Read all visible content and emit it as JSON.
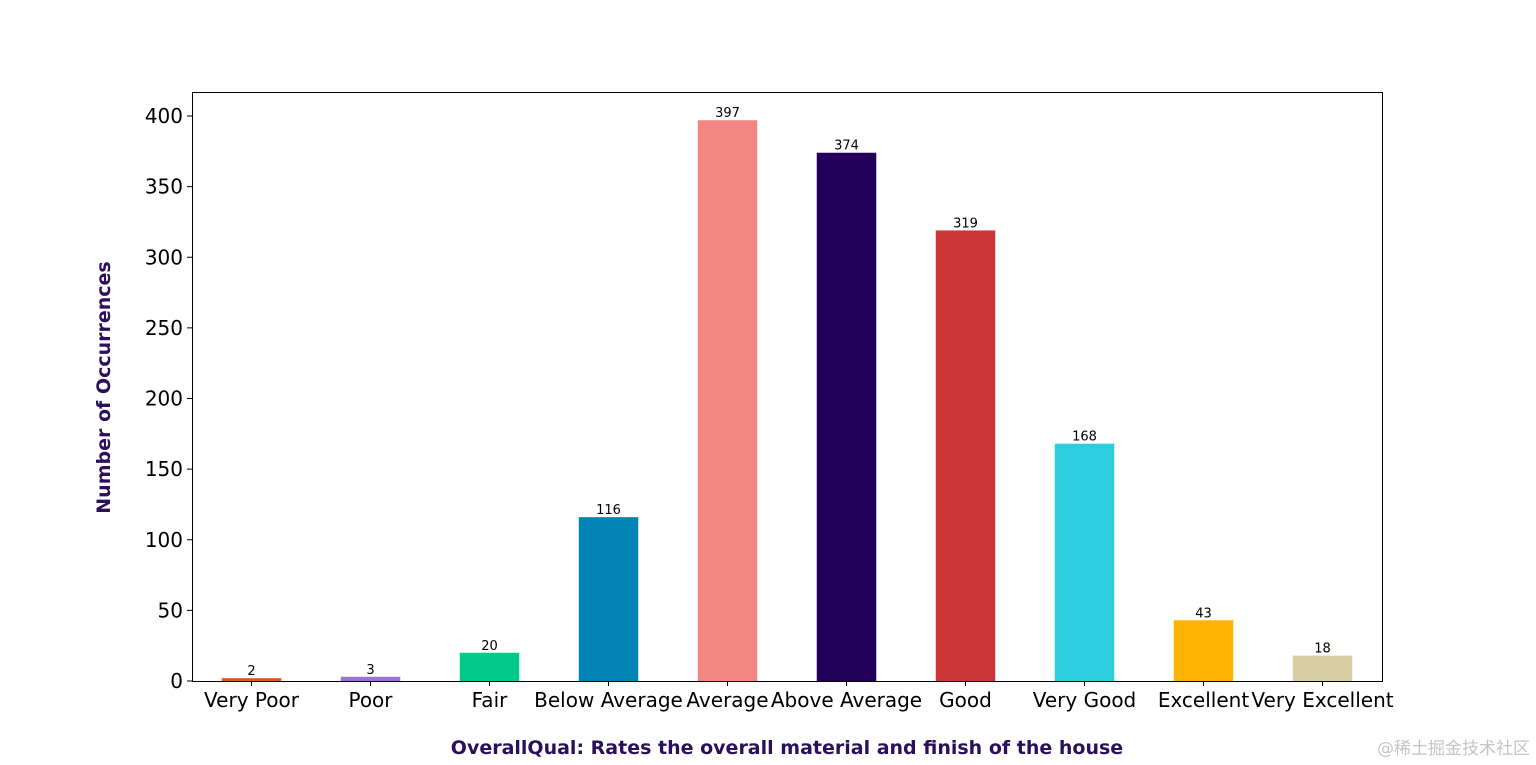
{
  "chart_data": {
    "type": "bar",
    "categories": [
      "Very Poor",
      "Poor",
      "Fair",
      "Below Average",
      "Average",
      "Above Average",
      "Good",
      "Very Good",
      "Excellent",
      "Very Excellent"
    ],
    "values": [
      2,
      3,
      20,
      116,
      397,
      374,
      319,
      168,
      43,
      18
    ],
    "colors": [
      "#e0561b",
      "#9b73d6",
      "#00c98a",
      "#0083b5",
      "#f38683",
      "#220059",
      "#cc3638",
      "#2ccddc",
      "#ffb300",
      "#d7d0a5"
    ],
    "title": "",
    "xlabel": "OverallQual: Rates the overall material and finish of the house",
    "ylabel": "Number of Occurrences",
    "label_color": "#2b0f5c",
    "yticks": [
      0,
      50,
      100,
      150,
      200,
      250,
      300,
      350,
      400
    ],
    "ylim": [
      0,
      417
    ],
    "grid": false,
    "data_labels": true
  },
  "watermark": "@稀土掘金技术社区"
}
